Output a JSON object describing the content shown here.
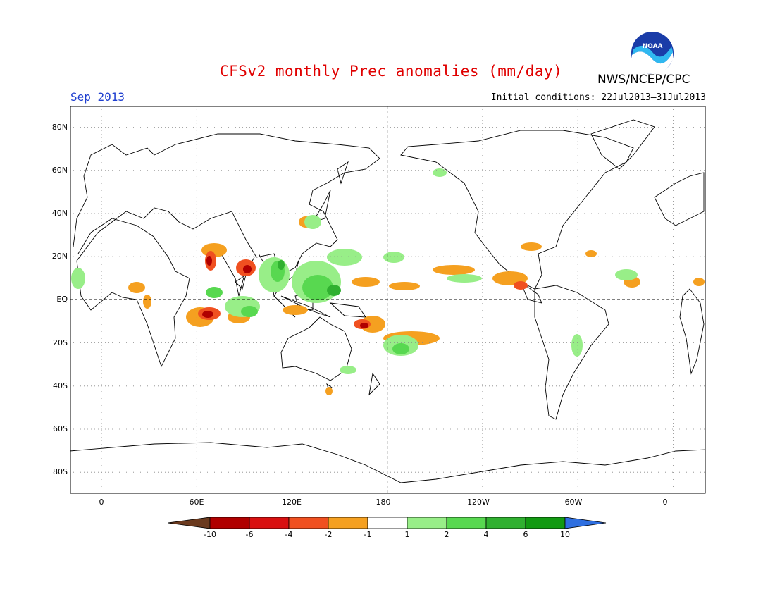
{
  "header": {
    "title": "CFSv2 monthly Prec anomalies (mm/day)",
    "month": "Sep 2013",
    "initial_conditions": "Initial conditions: 22Jul2013–31Jul2013",
    "agency": "NWS/NCEP/CPC",
    "logo_icon": "noaa-logo-icon",
    "logo_text": "NOAA"
  },
  "map": {
    "projection": "cylindrical-equidistant",
    "lon_range": [
      -20,
      380
    ],
    "lat_range": [
      -90,
      90
    ],
    "lat_labels": [
      "80N",
      "60N",
      "40N",
      "20N",
      "EQ",
      "20S",
      "40S",
      "60S",
      "80S"
    ],
    "lon_labels": [
      "0",
      "60E",
      "120E",
      "180",
      "120W",
      "60W",
      "0"
    ]
  },
  "colorbar": {
    "levels": [
      "-10",
      "-6",
      "-4",
      "-2",
      "-1",
      "1",
      "2",
      "4",
      "6",
      "10"
    ],
    "colors": [
      "#6b3a1e",
      "#b00000",
      "#d81010",
      "#f05020",
      "#f5a020",
      "#ffffff",
      "#98ee88",
      "#58d850",
      "#30b030",
      "#129a12",
      "#2f6fe0"
    ]
  }
}
